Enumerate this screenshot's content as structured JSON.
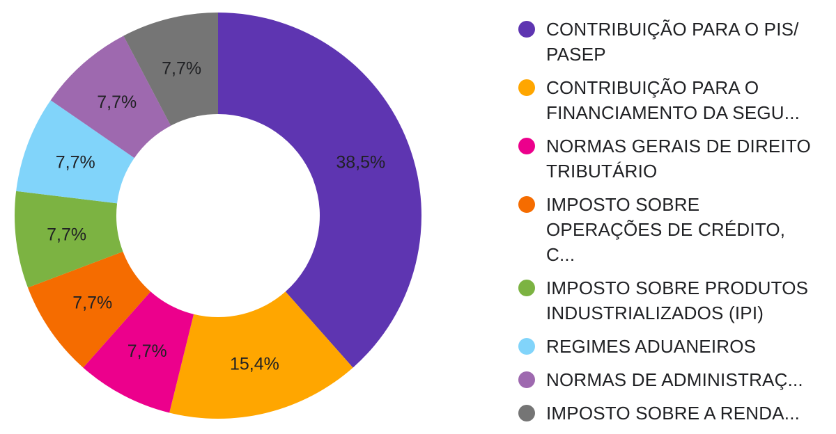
{
  "chart_data": {
    "type": "pie",
    "donut": true,
    "legend_position": "right",
    "label_format": "percent",
    "slices": [
      {
        "label": "CONTRIBUIÇÃO PARA O PIS/ PASEP",
        "value": 38.5,
        "display": "38,5%",
        "color": "#5E35B1",
        "label_color": "#C5B8E6"
      },
      {
        "label": "CONTRIBUIÇÃO PARA O FINANCIAMENTO DA SEGU...",
        "value": 15.4,
        "display": "15,4%",
        "color": "#FFA600",
        "label_color": "#202124"
      },
      {
        "label": "NORMAS GERAIS DE DIREITO TRIBUTÁRIO",
        "value": 7.7,
        "display": "7,7%",
        "color": "#EC008C",
        "label_color": "#202124"
      },
      {
        "label": "IMPOSTO SOBRE OPERAÇÕES DE CRÉDITO, C...",
        "value": 7.7,
        "display": "7,7%",
        "color": "#F56C00",
        "label_color": "#202124"
      },
      {
        "label": "IMPOSTO SOBRE PRODUTOS INDUSTRIALIZADOS (IPI)",
        "value": 7.7,
        "display": "7,7%",
        "color": "#7CB342",
        "label_color": "#202124"
      },
      {
        "label": "REGIMES ADUANEIROS",
        "value": 7.7,
        "display": "7,7%",
        "color": "#81D4FA",
        "label_color": "#202124"
      },
      {
        "label": "NORMAS DE ADMINISTRAÇ...",
        "value": 7.7,
        "display": "7,7%",
        "color": "#9E69AF",
        "label_color": "#202124"
      },
      {
        "label": "IMPOSTO SOBRE A RENDA...",
        "value": 7.7,
        "display": "7,7%",
        "color": "#757575",
        "label_color": "#202124"
      }
    ]
  }
}
